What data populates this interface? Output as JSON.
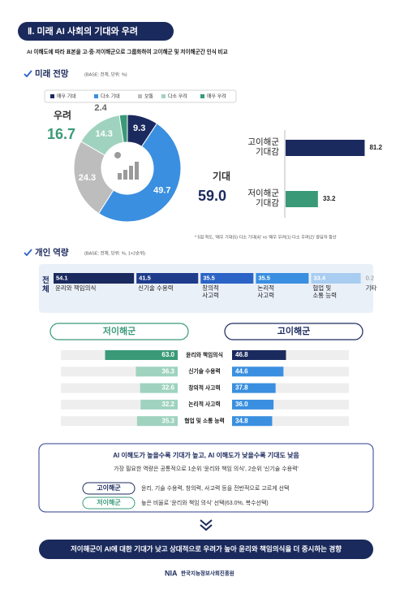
{
  "header": {
    "title": "Ⅱ. 미래 AI 사회의 기대와 우려",
    "subtitle": "AI 이해도에 따라 표본을 고·중·저이해군으로 그룹화하여 고이해군 및 저이해군간 인식 비교"
  },
  "chart_data": [
    {
      "type": "donut",
      "title": "미래 전망",
      "base": "(BASE: 전체, 단위: %)",
      "categories": [
        "매우 기대",
        "다소 기대",
        "보통",
        "다소 우려",
        "매우 우려"
      ],
      "colors": [
        "#1b2a5e",
        "#3a8fe0",
        "#bdbdbd",
        "#9fd3bf",
        "#3a9a78"
      ],
      "values": [
        9.3,
        49.7,
        24.3,
        14.3,
        2.4
      ],
      "annotations": [
        {
          "label": "우려",
          "value": 16.7,
          "color": "#3a9a78"
        },
        {
          "label": "기대",
          "value": 59.0,
          "value_label": "59.0",
          "color": "#1b2a5e"
        }
      ]
    },
    {
      "type": "hbar",
      "categories": [
        "고이해군\n기대감",
        "저이해군\n기대감"
      ],
      "values": [
        81.2,
        33.2
      ],
      "colors": [
        "#1b2a5e",
        "#3a9a78"
      ],
      "note": "* 5점 척도, '매우 기대(5)·다소 기대(4)' vs '매우 우려(1)·다소 우려(2)' 응답자 합산"
    },
    {
      "type": "stacked",
      "title": "개인 역량",
      "base": "(BASE: 전체, 단위: %, 1+2순위)",
      "group": "전\n체",
      "categories": [
        "윤리와 책임의식",
        "신기술 수용력",
        "창의적\n사고력",
        "논리적\n사고력",
        "협업 및\n소통 능력",
        "기타"
      ],
      "values": [
        54.1,
        41.5,
        35.5,
        35.5,
        33.4,
        0.2
      ],
      "colors": [
        "#1b2a5e",
        "#1f3c8c",
        "#2b63c6",
        "#3a8fe0",
        "#a9cdf1",
        "#dcdcdc"
      ]
    },
    {
      "type": "butterfly",
      "categories": [
        "윤리와 책임의식",
        "신기술 수용력",
        "창의적 사고력",
        "논리적 사고력",
        "협업 및 소통 능력"
      ],
      "series": [
        {
          "name": "저이해군",
          "color": "#3a9a78",
          "colors": [
            "#3a9a78",
            "#9fd3bf",
            "#9fd3bf",
            "#9fd3bf",
            "#9fd3bf"
          ],
          "values": [
            63.0,
            36.3,
            32.6,
            32.2,
            35.3
          ],
          "value_labels": [
            "63.0",
            "36.3",
            "32.6",
            "32.2",
            "35.3"
          ]
        },
        {
          "name": "고이해군",
          "color": "#1b2a5e",
          "colors": [
            "#1b2a5e",
            "#3a8fe0",
            "#3a8fe0",
            "#3a8fe0",
            "#3a8fe0"
          ],
          "values": [
            46.8,
            44.6,
            37.8,
            36.0,
            34.8
          ],
          "value_labels": [
            "46.8",
            "44.6",
            "37.8",
            "36.0",
            "34.8"
          ]
        }
      ]
    }
  ],
  "summary": {
    "title": "AI 이해도가 높을수록 기대가 높고, AI 이해도가 낮을수록 기대도 낮음",
    "text": "가장 필요한 역량은 공통적으로 1순위 '윤리와 책임 의식', 2순위 '신기술 수용력'",
    "rows": [
      {
        "group": "고이해군",
        "text": "윤리, 기술 수용력, 창의력, 사고력 등을 전반적으로 고르게 선택"
      },
      {
        "group": "저이해군",
        "text": "높은 비율로 '윤리와 책임 의식' 선택(63.0%, 복수선택)"
      }
    ]
  },
  "conclusion": "저이해군이 AI에 대한 기대가 낮고 상대적으로 우려가 높아 윤리와 책임의식을 더 중시하는 경향",
  "footer": {
    "logo": "NIA",
    "org": "한국지능정보사회진흥원"
  }
}
